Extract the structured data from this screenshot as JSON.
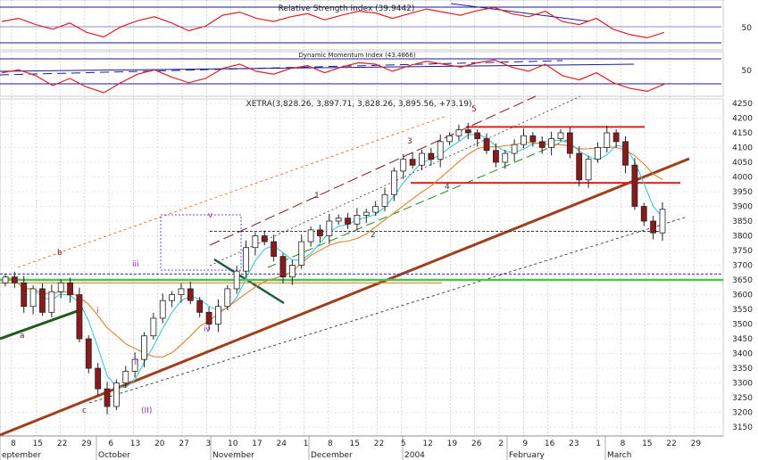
{
  "chart_data": [
    {
      "type": "line",
      "title": "Relative Strength Index (39.9442)",
      "y_ticks": [
        50
      ],
      "series": [
        {
          "values": [
            62,
            66,
            58,
            52,
            60,
            48,
            42,
            55,
            63,
            68,
            60,
            50,
            56,
            70,
            74,
            66,
            62,
            68,
            72,
            64,
            70,
            75,
            73,
            66,
            72,
            78,
            74,
            70,
            76,
            80,
            72,
            68,
            75,
            62,
            58,
            66,
            52,
            45,
            41,
            48
          ]
        }
      ]
    },
    {
      "type": "line",
      "title": "Dynamic Momentum Index (43.4866)",
      "y_ticks": [
        50
      ],
      "series": [
        {
          "values": [
            58,
            62,
            54,
            40,
            50,
            38,
            30,
            44,
            56,
            62,
            52,
            44,
            50,
            64,
            70,
            60,
            56,
            64,
            68,
            58,
            66,
            72,
            70,
            60,
            68,
            74,
            70,
            66,
            72,
            76,
            66,
            60,
            70,
            54,
            48,
            58,
            44,
            36,
            32,
            42
          ]
        }
      ]
    },
    {
      "type": "candlestick",
      "title": "XETRA(3,828.26, 3,897.71, 3,828.26, 3,895.56, +73.19)",
      "y_ticks": [
        3150,
        3200,
        3250,
        3300,
        3350,
        3400,
        3450,
        3500,
        3550,
        3600,
        3650,
        3700,
        3750,
        3800,
        3850,
        3900,
        3950,
        4000,
        4050,
        4100,
        4150,
        4200,
        4250
      ],
      "ylim": [
        3120,
        4265
      ],
      "x_ticks": [
        "8",
        "15",
        "22",
        "29",
        "6",
        "13",
        "20",
        "27",
        "3",
        "10",
        "17",
        "24",
        "1",
        "8",
        "15",
        "22",
        "5",
        "12",
        "19",
        "26",
        "2",
        "9",
        "16",
        "23",
        "1",
        "8",
        "15",
        "22",
        "29"
      ],
      "month_labels": [
        "eptember",
        "October",
        "November",
        "December",
        "2004",
        "February",
        "March"
      ],
      "close_path": [
        3660,
        3640,
        3560,
        3620,
        3540,
        3610,
        3640,
        3600,
        3450,
        3350,
        3280,
        3220,
        3300,
        3340,
        3380,
        3460,
        3520,
        3580,
        3600,
        3620,
        3580,
        3540,
        3500,
        3560,
        3620,
        3680,
        3760,
        3800,
        3780,
        3730,
        3660,
        3700,
        3780,
        3820,
        3800,
        3850,
        3860,
        3840,
        3870,
        3880,
        3900,
        3940,
        4020,
        4060,
        4040,
        4080,
        4060,
        4120,
        4140,
        4160,
        4150,
        4130,
        4090,
        4050,
        4080,
        4110,
        4140,
        4120,
        4100,
        4130,
        4150,
        4080,
        3990,
        4060,
        4100,
        4150,
        4120,
        4040,
        3900,
        3850,
        3810,
        3890
      ],
      "wave_labels": [
        "1",
        "2",
        "3",
        "4",
        "5",
        "i",
        "ii",
        "iii",
        "iv",
        "v",
        "a",
        "b",
        "c",
        "(II)"
      ],
      "horizontal_levels": [
        3670,
        3650,
        3640,
        3980,
        4170,
        3815
      ]
    }
  ]
}
